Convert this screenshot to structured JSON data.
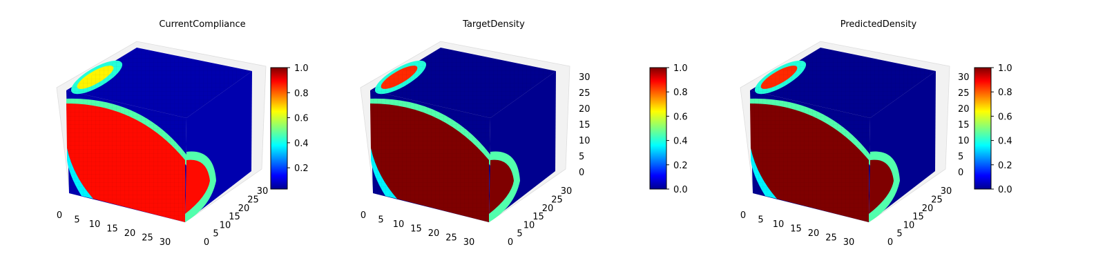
{
  "chart_data": [
    {
      "type": "heatmap",
      "title": "CurrentCompliance",
      "x_ticks": [
        "0",
        "5",
        "10",
        "15",
        "20",
        "25",
        "30"
      ],
      "y_ticks": [
        "0",
        "5",
        "10",
        "15",
        "20",
        "25",
        "30"
      ],
      "z_ticks": [],
      "colorbar": {
        "colormap": "jet",
        "range": [
          0.03,
          1.0
        ],
        "ticks": [
          "0.2",
          "0.4",
          "0.6",
          "0.8",
          "1.0"
        ]
      },
      "regions": {
        "solid_value": 0.88,
        "background_value": 0.03
      }
    },
    {
      "type": "heatmap",
      "title": "TargetDensity",
      "x_ticks": [
        "0",
        "5",
        "10",
        "15",
        "20",
        "25",
        "30"
      ],
      "y_ticks": [
        "0",
        "5",
        "10",
        "15",
        "20",
        "25",
        "30"
      ],
      "z_ticks": [
        "0",
        "5",
        "10",
        "15",
        "20",
        "25",
        "30"
      ],
      "colorbar": {
        "colormap": "jet",
        "range": [
          0.0,
          1.0
        ],
        "ticks": [
          "0.0",
          "0.2",
          "0.4",
          "0.6",
          "0.8",
          "1.0"
        ]
      },
      "regions": {
        "solid_value": 1.0,
        "background_value": 0.0
      }
    },
    {
      "type": "heatmap",
      "title": "PredictedDensity",
      "x_ticks": [
        "0",
        "5",
        "10",
        "15",
        "20",
        "25",
        "30"
      ],
      "y_ticks": [
        "0",
        "5",
        "10",
        "15",
        "20",
        "25",
        "30"
      ],
      "z_ticks": [
        "0",
        "5",
        "10",
        "15",
        "20",
        "25",
        "30"
      ],
      "colorbar": {
        "colormap": "jet",
        "range": [
          0.0,
          1.0
        ],
        "ticks": [
          "0.0",
          "0.2",
          "0.4",
          "0.6",
          "0.8",
          "1.0"
        ]
      },
      "regions": {
        "solid_value": 1.0,
        "background_value": 0.0
      }
    }
  ]
}
